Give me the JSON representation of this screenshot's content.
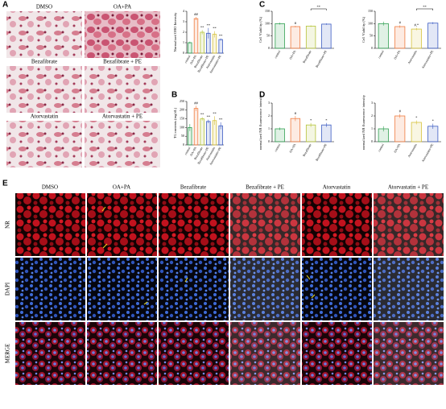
{
  "panel_labels": [
    "A",
    "B",
    "C",
    "D",
    "E"
  ],
  "panel_a": {
    "labels": [
      "DMSO",
      "OA+PA",
      "Bezafibrate",
      "Bezafibrate + PE",
      "Atorvastatin",
      "Atorvastatin + PE"
    ]
  },
  "panel_e": {
    "columns": [
      "DMSO",
      "OA+PA",
      "Bezafibrate",
      "Bezafibrate + PE",
      "Atorvastatin",
      "Atorvastatin + PE"
    ],
    "rows": [
      "NR",
      "DAPI",
      "MERGE"
    ]
  },
  "chart_data": [
    {
      "type": "bar",
      "ylabel": "Normalized ORO Intensity",
      "categories": [
        "control",
        "OA+PA",
        "Bezafibrate",
        "Bezafibrate+PE",
        "Atorvastatin",
        "Atorvastatin+PE"
      ],
      "values": [
        1.0,
        3.3,
        2.0,
        1.9,
        1.8,
        1.3
      ],
      "errors": [
        0.1,
        0.15,
        0.2,
        0.5,
        0.3,
        0.1
      ],
      "colors": [
        "#2e9e4f",
        "#f07b3f",
        "#b5c43a",
        "#3b5bc2",
        "#d6c23a",
        "#3b5bc2"
      ],
      "ylim": [
        0,
        4
      ],
      "yticks": [
        0,
        1,
        2,
        3,
        4
      ],
      "annotations": [
        null,
        "##",
        "**",
        "**",
        "**",
        "**"
      ]
    },
    {
      "type": "bar",
      "ylabel": "TG contents (mg/dL)",
      "categories": [
        "control",
        "OA+PA",
        "Bezafibrate",
        "Bezafibrate+PE",
        "Atorvastatin",
        "Atorvastatin+PE"
      ],
      "values": [
        100,
        210,
        150,
        135,
        140,
        110
      ],
      "errors": [
        20,
        15,
        10,
        10,
        25,
        20
      ],
      "colors": [
        "#2e9e4f",
        "#f07b3f",
        "#b5c43a",
        "#3b5bc2",
        "#d6c23a",
        "#3b5bc2"
      ],
      "ylim": [
        0,
        250
      ],
      "yticks": [
        0,
        50,
        100,
        150,
        200,
        250
      ],
      "annotations": [
        null,
        "##",
        "**",
        "**",
        "**",
        "**"
      ]
    },
    {
      "type": "bar",
      "ylabel": "Cell Viability (%)",
      "categories": [
        "control",
        "OA+PA",
        "Bezafibrate",
        "Bezafibrate+PE"
      ],
      "values": [
        100,
        88,
        90,
        98
      ],
      "errors": [
        4,
        3,
        3,
        3
      ],
      "colors": [
        "#2e9e4f",
        "#f07b3f",
        "#b5c43a",
        "#3b5bc2"
      ],
      "ylim": [
        0,
        150
      ],
      "yticks": [
        0,
        50,
        100,
        150
      ],
      "annotations": [
        null,
        "#",
        null,
        null
      ],
      "bracket_label": "**"
    },
    {
      "type": "bar",
      "ylabel": "Cell Viability (%)",
      "categories": [
        "control",
        "OA+PA",
        "Atorvastatin",
        "Atorvastatin+PE"
      ],
      "values": [
        100,
        88,
        78,
        102
      ],
      "errors": [
        8,
        5,
        5,
        4
      ],
      "colors": [
        "#2e9e4f",
        "#f07b3f",
        "#d6c23a",
        "#3b5bc2"
      ],
      "ylim": [
        0,
        150
      ],
      "yticks": [
        0,
        50,
        100,
        150
      ],
      "annotations": [
        null,
        "#",
        "#,*",
        null
      ],
      "bracket_label": "**"
    },
    {
      "type": "bar",
      "ylabel": "normalized NR fluorescence intensity",
      "categories": [
        "control",
        "OA+PA",
        "Bezafibrate",
        "Bezafibrate+PE"
      ],
      "values": [
        1.0,
        1.8,
        1.3,
        1.3
      ],
      "errors": [
        0.1,
        0.2,
        0.15,
        0.15
      ],
      "colors": [
        "#2e9e4f",
        "#f07b3f",
        "#b5c43a",
        "#3b5bc2"
      ],
      "ylim": [
        0,
        3
      ],
      "yticks": [
        0,
        1,
        2,
        3
      ],
      "annotations": [
        null,
        "#",
        "*",
        "*"
      ]
    },
    {
      "type": "bar",
      "ylabel": "normalized NR fluorescence intensity",
      "categories": [
        "control",
        "OA+PA",
        "Atorvastatin",
        "Atorvastatin+PE"
      ],
      "values": [
        1.0,
        2.0,
        1.5,
        1.2
      ],
      "errors": [
        0.2,
        0.15,
        0.15,
        0.2
      ],
      "colors": [
        "#2e9e4f",
        "#f07b3f",
        "#d6c23a",
        "#3b5bc2"
      ],
      "ylim": [
        0,
        3
      ],
      "yticks": [
        0,
        1,
        2,
        3
      ],
      "annotations": [
        null,
        "#",
        "*",
        "*"
      ]
    }
  ]
}
